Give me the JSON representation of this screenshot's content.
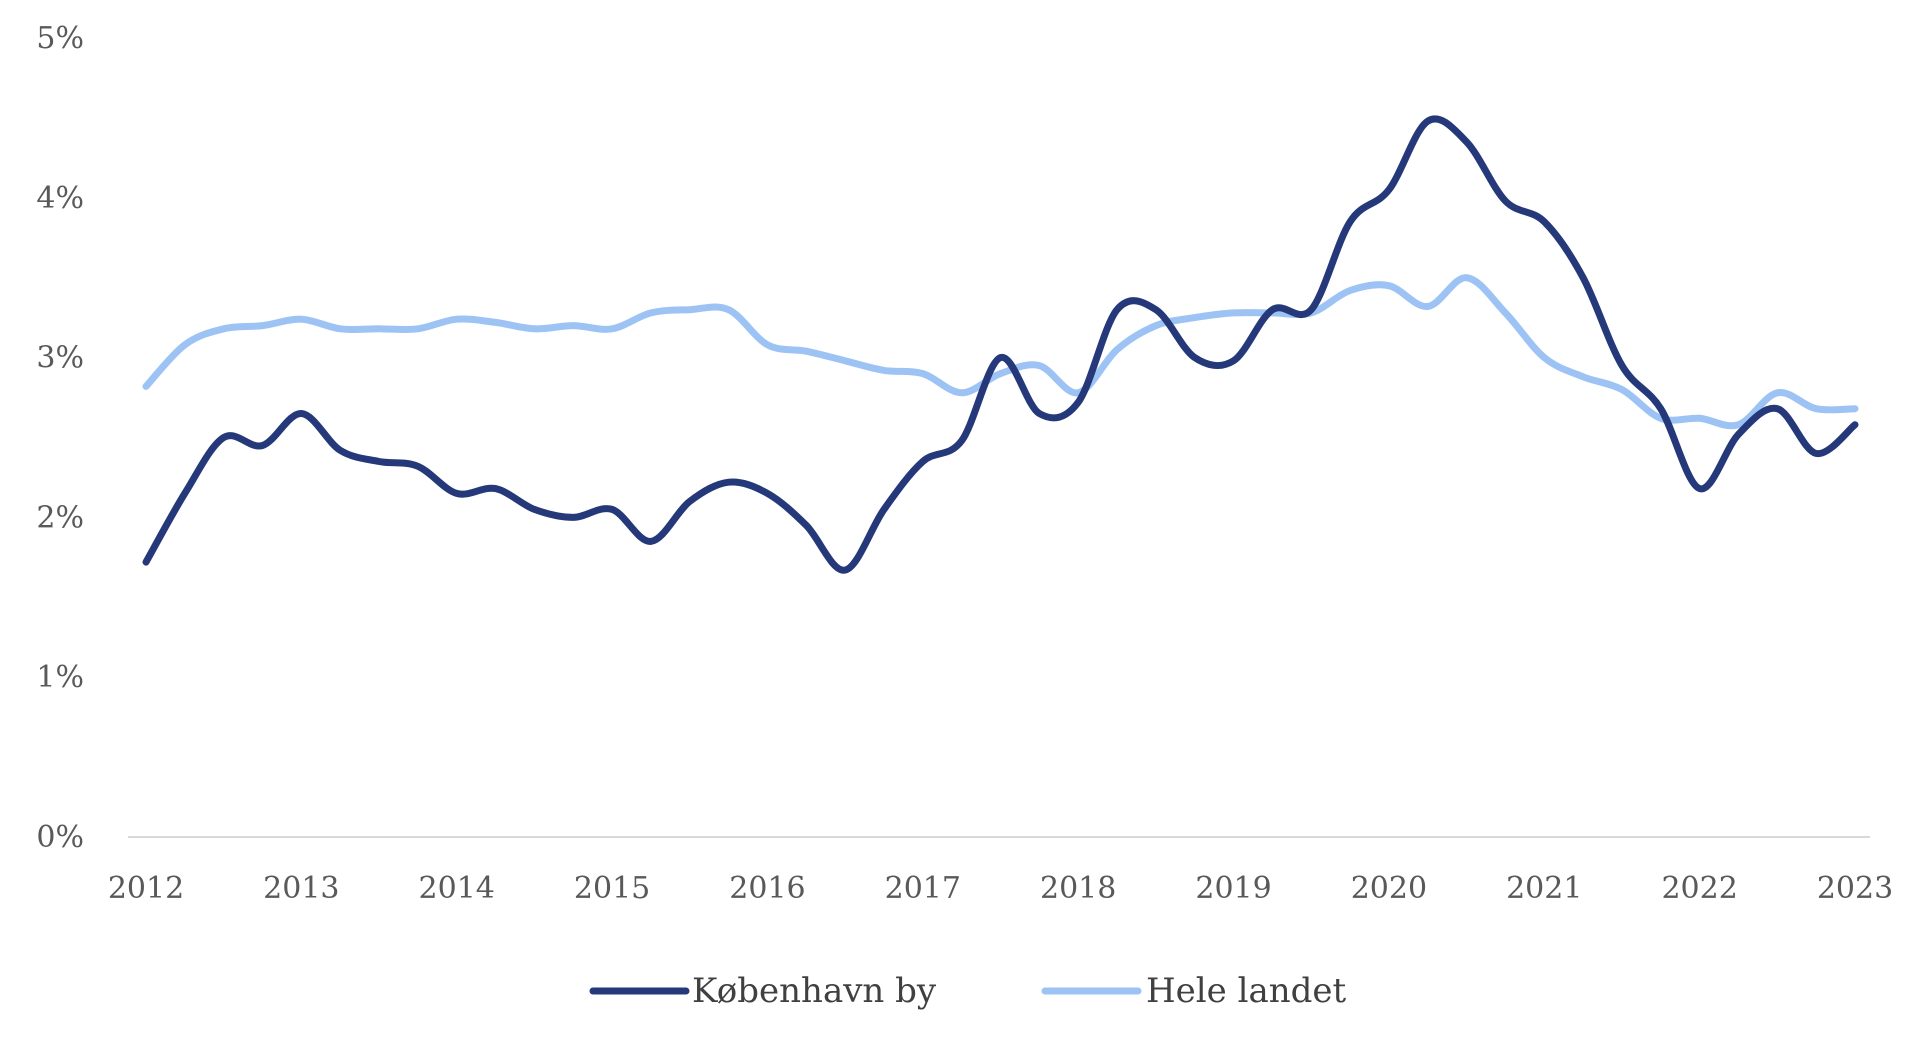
{
  "chart_data": {
    "type": "line",
    "title": "",
    "xlabel": "",
    "ylabel": "",
    "x_ticks": [
      "2012",
      "2013",
      "2014",
      "2015",
      "2016",
      "2017",
      "2018",
      "2019",
      "2020",
      "2021",
      "2022",
      "2023"
    ],
    "y_ticks": [
      "0%",
      "1%",
      "2%",
      "3%",
      "4%",
      "5%"
    ],
    "xlim": [
      2012,
      2023
    ],
    "ylim": [
      0,
      5
    ],
    "grid": false,
    "legend_position": "bottom",
    "series": [
      {
        "name": "København by",
        "color": "#25397A",
        "points": [
          [
            2012.0,
            1.72
          ],
          [
            2012.25,
            2.15
          ],
          [
            2012.5,
            2.5
          ],
          [
            2012.75,
            2.45
          ],
          [
            2013.0,
            2.65
          ],
          [
            2013.25,
            2.42
          ],
          [
            2013.5,
            2.35
          ],
          [
            2013.75,
            2.32
          ],
          [
            2014.0,
            2.15
          ],
          [
            2014.25,
            2.18
          ],
          [
            2014.5,
            2.05
          ],
          [
            2014.75,
            2.0
          ],
          [
            2015.0,
            2.05
          ],
          [
            2015.25,
            1.85
          ],
          [
            2015.5,
            2.1
          ],
          [
            2015.75,
            2.22
          ],
          [
            2016.0,
            2.15
          ],
          [
            2016.25,
            1.95
          ],
          [
            2016.5,
            1.67
          ],
          [
            2016.75,
            2.05
          ],
          [
            2017.0,
            2.35
          ],
          [
            2017.25,
            2.48
          ],
          [
            2017.5,
            3.0
          ],
          [
            2017.75,
            2.65
          ],
          [
            2018.0,
            2.72
          ],
          [
            2018.25,
            3.3
          ],
          [
            2018.5,
            3.3
          ],
          [
            2018.75,
            3.0
          ],
          [
            2019.0,
            2.98
          ],
          [
            2019.25,
            3.3
          ],
          [
            2019.5,
            3.3
          ],
          [
            2019.75,
            3.85
          ],
          [
            2020.0,
            4.05
          ],
          [
            2020.25,
            4.48
          ],
          [
            2020.5,
            4.35
          ],
          [
            2020.75,
            3.98
          ],
          [
            2021.0,
            3.85
          ],
          [
            2021.25,
            3.5
          ],
          [
            2021.5,
            2.95
          ],
          [
            2021.75,
            2.68
          ],
          [
            2022.0,
            2.18
          ],
          [
            2022.25,
            2.52
          ],
          [
            2022.5,
            2.68
          ],
          [
            2022.75,
            2.4
          ],
          [
            2023.0,
            2.58
          ]
        ]
      },
      {
        "name": "Hele landet",
        "color": "#9DC3F5",
        "points": [
          [
            2012.0,
            2.82
          ],
          [
            2012.25,
            3.08
          ],
          [
            2012.5,
            3.18
          ],
          [
            2012.75,
            3.2
          ],
          [
            2013.0,
            3.24
          ],
          [
            2013.25,
            3.18
          ],
          [
            2013.5,
            3.18
          ],
          [
            2013.75,
            3.18
          ],
          [
            2014.0,
            3.24
          ],
          [
            2014.25,
            3.22
          ],
          [
            2014.5,
            3.18
          ],
          [
            2014.75,
            3.2
          ],
          [
            2015.0,
            3.18
          ],
          [
            2015.25,
            3.28
          ],
          [
            2015.5,
            3.3
          ],
          [
            2015.75,
            3.3
          ],
          [
            2016.0,
            3.08
          ],
          [
            2016.25,
            3.04
          ],
          [
            2016.5,
            2.98
          ],
          [
            2016.75,
            2.92
          ],
          [
            2017.0,
            2.9
          ],
          [
            2017.25,
            2.78
          ],
          [
            2017.5,
            2.9
          ],
          [
            2017.75,
            2.95
          ],
          [
            2018.0,
            2.78
          ],
          [
            2018.25,
            3.05
          ],
          [
            2018.5,
            3.2
          ],
          [
            2018.75,
            3.25
          ],
          [
            2019.0,
            3.28
          ],
          [
            2019.25,
            3.28
          ],
          [
            2019.5,
            3.28
          ],
          [
            2019.75,
            3.42
          ],
          [
            2020.0,
            3.45
          ],
          [
            2020.25,
            3.32
          ],
          [
            2020.5,
            3.5
          ],
          [
            2020.75,
            3.28
          ],
          [
            2021.0,
            3.0
          ],
          [
            2021.25,
            2.88
          ],
          [
            2021.5,
            2.8
          ],
          [
            2021.75,
            2.62
          ],
          [
            2022.0,
            2.62
          ],
          [
            2022.25,
            2.58
          ],
          [
            2022.5,
            2.78
          ],
          [
            2022.75,
            2.68
          ],
          [
            2023.0,
            2.68
          ]
        ]
      }
    ]
  }
}
